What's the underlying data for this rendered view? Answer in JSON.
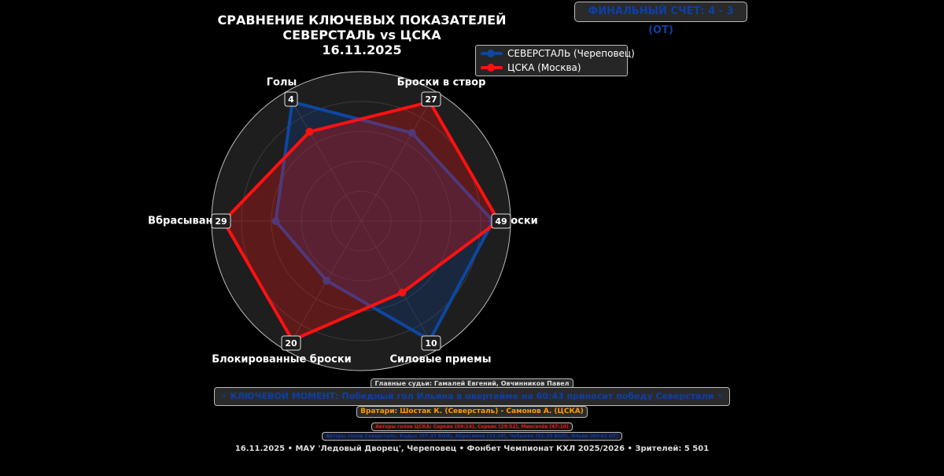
{
  "header": {
    "title_line1": "СРАВНЕНИЕ КЛЮЧЕВЫХ ПОКАЗАТЕЛЕЙ",
    "title_line2": "СЕВЕРСТАЛЬ vs ЦСКА",
    "title_line3": "16.11.2025"
  },
  "final_score": "ФИНАЛЬНЫЙ СЧЕТ: 4 - 3 (ОТ)",
  "legend": {
    "home": "СЕВЕРСТАЛЬ (Череповец)",
    "away": "ЦСКА (Москва)"
  },
  "info": {
    "referees": "Главные судьи: Гамалей Евгений, Овчинников Павел",
    "key_moment": "⚡ КЛЮЧЕВОЙ МОМЕНТ: Победный гол Ильина в овертайме на 60:43 приносит победу Северстали ⚡",
    "goalies": "Вратари: Шостак К. (Северсталь) - Самонов А. (ЦСКА)",
    "cska_scorers": "Авторы голов ЦСКА: Соркин (09:14), Сереис (29:52), Мингачёв (47:10)",
    "severstal_scorers": "Авторы голов Северсталь: Кадыс (07:37 БОЛ), Абросимов (33:10), Чебыкин (51:33 БОЛ), Ильин (60:43 ОТ)",
    "footer": "16.11.2025 • МАУ 'Ледовый Дворец', Череповец • Фонбет Чемпионат КХЛ 2025/2026 • Зрителей: 5 501"
  },
  "colors": {
    "home": "#0d47a1",
    "away": "#ff1111",
    "score_text": "#0d3fa8",
    "goalies_text": "#ff9900"
  },
  "chart_data": {
    "type": "radar",
    "axes": [
      "Голы",
      "Броски в створ",
      "Броски",
      "Силовые приемы",
      "Блокированные броски",
      "Вбрасывания"
    ],
    "max_labels": [
      4,
      27,
      49,
      10,
      20,
      29
    ],
    "series": [
      {
        "name": "СЕВЕРСТАЛЬ (Череповец)",
        "values": [
          4,
          20,
          47,
          10,
          10,
          18
        ]
      },
      {
        "name": "ЦСКА (Москва)",
        "values": [
          3,
          27,
          49,
          6,
          20,
          29
        ]
      }
    ],
    "grid": true,
    "legend_position": "top-right"
  }
}
